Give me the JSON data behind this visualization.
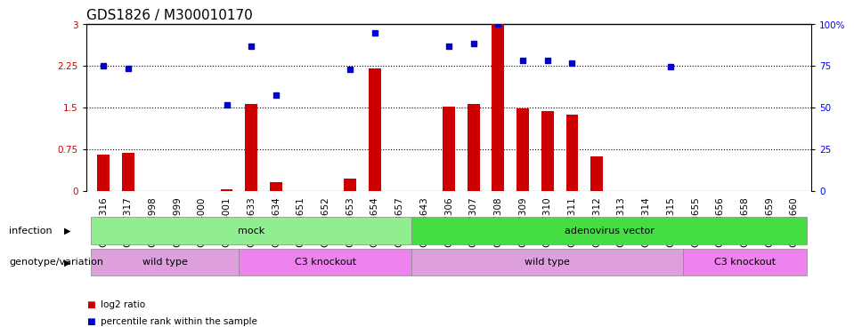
{
  "title": "GDS1826 / M300010170",
  "samples": [
    "GSM87316",
    "GSM87317",
    "GSM93998",
    "GSM93999",
    "GSM94000",
    "GSM94001",
    "GSM93633",
    "GSM93634",
    "GSM93651",
    "GSM93652",
    "GSM93653",
    "GSM93654",
    "GSM93657",
    "GSM86643",
    "GSM87306",
    "GSM87307",
    "GSM87308",
    "GSM87309",
    "GSM87310",
    "GSM87311",
    "GSM87312",
    "GSM87313",
    "GSM87314",
    "GSM87315",
    "GSM93655",
    "GSM93656",
    "GSM93658",
    "GSM93659",
    "GSM93660"
  ],
  "log2_ratio": [
    0.65,
    0.68,
    0,
    0,
    0,
    0.02,
    1.57,
    0.15,
    0,
    0,
    0.22,
    2.2,
    0,
    0,
    1.52,
    1.57,
    3.0,
    1.48,
    1.44,
    1.37,
    0.62,
    0,
    0,
    0,
    0,
    0,
    0,
    0,
    0
  ],
  "percentile": [
    2.25,
    2.2,
    null,
    null,
    null,
    1.55,
    2.6,
    1.72,
    null,
    null,
    2.18,
    2.85,
    null,
    null,
    2.6,
    2.65,
    3.0,
    2.35,
    2.35,
    2.3,
    null,
    null,
    null,
    2.23,
    null,
    null,
    null,
    null,
    null
  ],
  "ylim_left": [
    0,
    3
  ],
  "ylim_right": [
    0,
    100
  ],
  "yticks_left": [
    0,
    0.75,
    1.5,
    2.25,
    3
  ],
  "yticks_right": [
    0,
    25,
    50,
    75,
    100
  ],
  "ytick_labels_right": [
    "0",
    "25",
    "50",
    "75",
    "100%"
  ],
  "infection_groups": [
    {
      "label": "mock",
      "start": 0,
      "end": 13,
      "color": "#90EE90"
    },
    {
      "label": "adenovirus vector",
      "start": 13,
      "end": 29,
      "color": "#44DD44"
    }
  ],
  "genotype_groups": [
    {
      "label": "wild type",
      "start": 0,
      "end": 6,
      "color": "#DDA0DD"
    },
    {
      "label": "C3 knockout",
      "start": 6,
      "end": 13,
      "color": "#EE82EE"
    },
    {
      "label": "wild type",
      "start": 13,
      "end": 24,
      "color": "#DDA0DD"
    },
    {
      "label": "C3 knockout",
      "start": 24,
      "end": 29,
      "color": "#EE82EE"
    }
  ],
  "bar_color": "#CC0000",
  "scatter_color": "#0000CC",
  "hline_values": [
    0.75,
    1.5,
    2.25
  ],
  "infection_label": "infection",
  "genotype_label": "genotype/variation",
  "legend_bar_label": "log2 ratio",
  "legend_scatter_label": "percentile rank within the sample",
  "title_fontsize": 11,
  "tick_fontsize": 7.5,
  "label_fontsize": 8
}
